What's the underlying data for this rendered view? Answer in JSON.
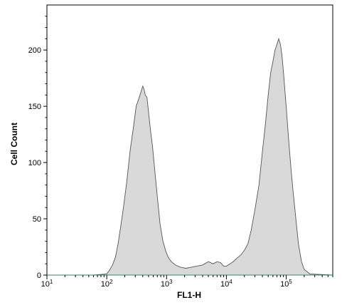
{
  "chart_data": {
    "type": "area",
    "title": "",
    "xlabel": "FL1-H",
    "ylabel": "Cell Count",
    "x_scale": "log10",
    "xlim": [
      10,
      600000
    ],
    "ylim": [
      0,
      240
    ],
    "x_ticks": [
      {
        "value": 10,
        "base": "10",
        "exp": "1"
      },
      {
        "value": 100,
        "base": "10",
        "exp": "2"
      },
      {
        "value": 1000,
        "base": "10",
        "exp": "3"
      },
      {
        "value": 10000,
        "base": "10",
        "exp": "4"
      },
      {
        "value": 100000,
        "base": "10",
        "exp": "5"
      }
    ],
    "y_ticks": [
      0,
      50,
      100,
      150,
      200
    ],
    "grid": false,
    "legend": "none",
    "fill_color": "#d9d9d9",
    "line_color": "#555555",
    "series": [
      {
        "x": [
          10,
          60,
          100,
          110,
          125,
          140,
          155,
          170,
          190,
          215,
          245,
          280,
          310,
          340,
          370,
          400,
          420,
          440,
          470,
          500,
          540,
          580,
          630,
          700,
          780,
          870,
          960,
          1060,
          1200,
          1400,
          1700,
          2100,
          2600,
          3200,
          4000,
          5000,
          6000,
          7000,
          8000,
          9000,
          10000,
          11500,
          13000,
          15000,
          17500,
          20000,
          23000,
          26000,
          30000,
          35000,
          40000,
          45000,
          50000,
          55000,
          60000,
          65000,
          70000,
          75000,
          80000,
          85000,
          90000,
          100000,
          110000,
          120000,
          130000,
          145000,
          160000,
          180000,
          200000,
          250000,
          600000
        ],
        "y": [
          0,
          0,
          1,
          4,
          9,
          16,
          28,
          42,
          60,
          82,
          110,
          132,
          150,
          156,
          162,
          168,
          165,
          160,
          158,
          145,
          128,
          115,
          95,
          70,
          45,
          30,
          22,
          16,
          12,
          9,
          7,
          6,
          7,
          8,
          9,
          12,
          10,
          12,
          11,
          8,
          8,
          10,
          12,
          15,
          18,
          22,
          28,
          40,
          58,
          80,
          110,
          135,
          160,
          180,
          190,
          200,
          205,
          210,
          205,
          195,
          180,
          150,
          120,
          95,
          75,
          50,
          28,
          12,
          5,
          1,
          0
        ]
      }
    ]
  }
}
